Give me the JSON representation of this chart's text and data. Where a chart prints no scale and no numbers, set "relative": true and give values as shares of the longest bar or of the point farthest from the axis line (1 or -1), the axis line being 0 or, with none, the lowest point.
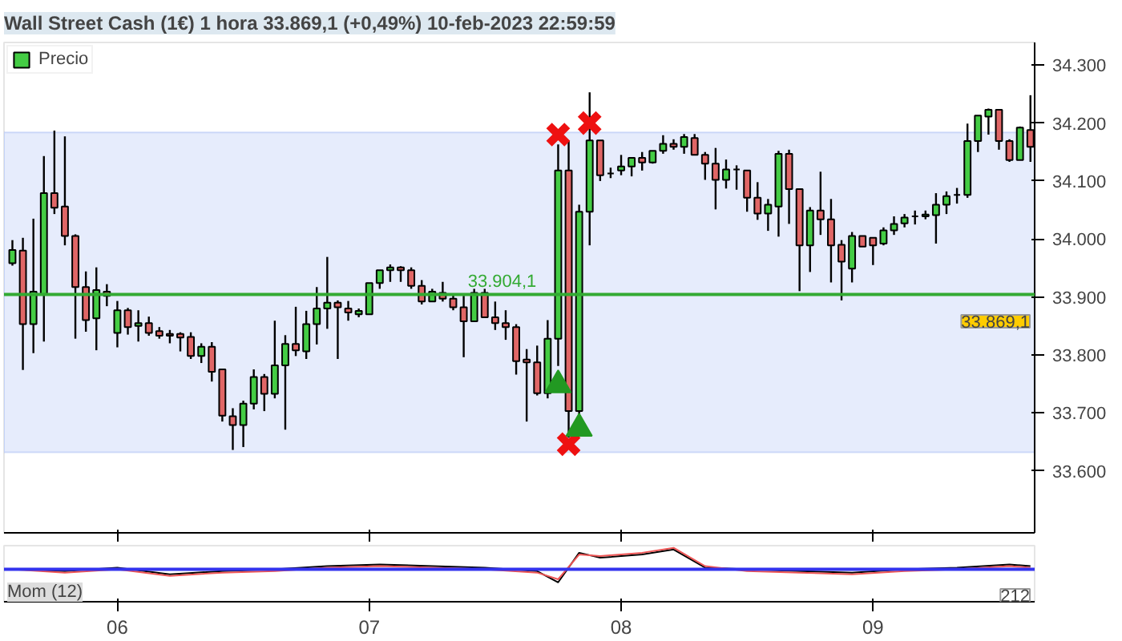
{
  "chart_data": [
    {
      "type": "candlestick",
      "title": "Wall Street Cash (1€) 1 hora 33.869,1 (+0,49%) 10-feb-2023 22:59:59",
      "legend": "top left",
      "tick_labels": "y",
      "x": [
        "2023-02-05T14:00",
        "2023-02-05T15:00",
        "2023-02-05T16:00",
        "2023-02-05T17:00",
        "2023-02-05T18:00",
        "2023-02-05T19:00",
        "2023-02-05T20:00",
        "2023-02-05T21:00",
        "2023-02-05T22:00",
        "2023-02-05T23:00",
        "2023-02-06T00:00",
        "2023-02-06T01:00",
        "2023-02-06T02:00",
        "2023-02-06T03:00",
        "2023-02-06T04:00",
        "2023-02-06T05:00",
        "2023-02-06T06:00",
        "2023-02-06T07:00",
        "2023-02-06T08:00",
        "2023-02-06T09:00",
        "2023-02-06T10:00",
        "2023-02-06T11:00",
        "2023-02-06T12:00",
        "2023-02-06T13:00",
        "2023-02-06T14:00",
        "2023-02-06T15:00",
        "2023-02-06T16:00",
        "2023-02-06T17:00",
        "2023-02-06T18:00",
        "2023-02-06T19:00",
        "2023-02-06T20:00",
        "2023-02-06T21:00",
        "2023-02-06T22:00",
        "2023-02-06T23:00",
        "2023-02-07T00:00",
        "2023-02-07T01:00",
        "2023-02-07T02:00",
        "2023-02-07T03:00",
        "2023-02-07T04:00",
        "2023-02-07T05:00",
        "2023-02-07T06:00",
        "2023-02-07T07:00",
        "2023-02-07T08:00",
        "2023-02-07T09:00",
        "2023-02-07T10:00",
        "2023-02-07T11:00",
        "2023-02-07T12:00",
        "2023-02-07T13:00",
        "2023-02-07T14:00",
        "2023-02-07T15:00",
        "2023-02-07T16:00",
        "2023-02-07T17:00",
        "2023-02-07T18:00",
        "2023-02-07T19:00",
        "2023-02-07T20:00",
        "2023-02-07T21:00",
        "2023-02-07T22:00",
        "2023-02-07T23:00",
        "2023-02-08T00:00",
        "2023-02-08T01:00",
        "2023-02-08T02:00",
        "2023-02-08T03:00",
        "2023-02-08T04:00",
        "2023-02-08T05:00",
        "2023-02-08T06:00",
        "2023-02-08T07:00",
        "2023-02-08T08:00",
        "2023-02-08T09:00",
        "2023-02-08T10:00",
        "2023-02-08T11:00",
        "2023-02-08T12:00",
        "2023-02-08T13:00",
        "2023-02-08T14:00",
        "2023-02-08T15:00",
        "2023-02-08T16:00",
        "2023-02-08T17:00",
        "2023-02-08T18:00",
        "2023-02-08T19:00",
        "2023-02-08T20:00",
        "2023-02-08T21:00",
        "2023-02-08T22:00",
        "2023-02-08T23:00",
        "2023-02-09T00:00",
        "2023-02-09T01:00",
        "2023-02-09T02:00",
        "2023-02-09T03:00",
        "2023-02-09T04:00",
        "2023-02-09T05:00",
        "2023-02-09T06:00",
        "2023-02-09T07:00",
        "2023-02-09T08:00",
        "2023-02-09T09:00",
        "2023-02-09T10:00",
        "2023-02-09T11:00",
        "2023-02-09T12:00",
        "2023-02-09T13:00",
        "2023-02-09T14:00",
        "2023-02-09T15:00"
      ],
      "series": [
        {
          "name": "Precio",
          "colors": [
            "#44cc44",
            "#e06666",
            "#44cc44",
            "#44cc44",
            "#e06666",
            "#e06666",
            "#e06666",
            "#e06666",
            "#44cc44",
            "#e06666",
            "#44cc44",
            "#e06666",
            "#44cc44",
            "#e06666",
            "#e06666",
            "#e06666",
            "#e06666",
            "#e06666",
            "#44cc44",
            "#e06666",
            "#e06666",
            "#e06666",
            "#44cc44",
            "#44cc44",
            "#e06666",
            "#44cc44",
            "#44cc44",
            "#e06666",
            "#44cc44",
            "#44cc44",
            "#44cc44",
            "#e06666",
            "#e06666",
            "#44cc44",
            "#44cc44",
            "#44cc44",
            "#44cc44",
            "#e06666",
            "#e06666",
            "#e06666",
            "#44cc44",
            "#e06666",
            "#e06666",
            "#e06666",
            "#44cc44",
            "#e06666",
            "#e06666",
            "#e06666",
            "#e06666",
            "#e06666",
            "#e06666",
            "#44cc44",
            "#44cc44",
            "#e06666",
            "#44cc44",
            "#44cc44",
            "#e06666",
            "#000000",
            "#44cc44",
            "#44cc44",
            "#e06666",
            "#44cc44",
            "#44cc44",
            "#e06666",
            "#44cc44",
            "#e06666",
            "#e06666",
            "#e06666",
            "#44cc44",
            "#000000",
            "#e06666",
            "#e06666",
            "#44cc44",
            "#44cc44",
            "#e06666",
            "#e06666",
            "#44cc44",
            "#e06666",
            "#e06666",
            "#e06666",
            "#44cc44",
            "#e06666",
            "#e06666",
            "#44cc44",
            "#44cc44",
            "#44cc44",
            "#000000",
            "#44cc44",
            "#44cc44",
            "#44cc44",
            "#000000",
            "#44cc44",
            "#44cc44",
            "#44cc44",
            "#e06666",
            "#e06666",
            "#44cc44",
            "#e06666"
          ],
          "ohlc": [
            [
              33958,
              33998,
              33954,
              33981
            ],
            [
              33980,
              34002,
              33774,
              33853
            ],
            [
              33853,
              34035,
              33803,
              33909
            ],
            [
              33904,
              34143,
              33823,
              34079
            ],
            [
              34079,
              34187,
              34043,
              34054
            ],
            [
              34056,
              34177,
              33989,
              34005
            ],
            [
              34005,
              34008,
              33828,
              33917
            ],
            [
              33917,
              33944,
              33840,
              33860
            ],
            [
              33863,
              33951,
              33808,
              33912
            ],
            [
              33909,
              33922,
              33884,
              33902
            ],
            [
              33838,
              33893,
              33813,
              33877
            ],
            [
              33877,
              33881,
              33835,
              33848
            ],
            [
              33850,
              33877,
              33823,
              33855
            ],
            [
              33855,
              33866,
              33833,
              33838
            ],
            [
              33841,
              33848,
              33828,
              33833
            ],
            [
              33836,
              33843,
              33820,
              33833
            ],
            [
              33836,
              33839,
              33806,
              33830
            ],
            [
              33831,
              33839,
              33793,
              33798
            ],
            [
              33798,
              33820,
              33786,
              33814
            ],
            [
              33814,
              33822,
              33754,
              33771
            ],
            [
              33775,
              33775,
              33685,
              33695
            ],
            [
              33694,
              33708,
              33636,
              33679
            ],
            [
              33679,
              33721,
              33641,
              33716
            ],
            [
              33716,
              33775,
              33706,
              33762
            ],
            [
              33762,
              33767,
              33703,
              33733
            ],
            [
              33733,
              33859,
              33725,
              33782
            ],
            [
              33782,
              33834,
              33671,
              33819
            ],
            [
              33819,
              33883,
              33798,
              33808
            ],
            [
              33806,
              33876,
              33793,
              33853
            ],
            [
              33853,
              33917,
              33818,
              33880
            ],
            [
              33880,
              33969,
              33845,
              33890
            ],
            [
              33890,
              33894,
              33793,
              33882
            ],
            [
              33880,
              33893,
              33859,
              33873
            ],
            [
              33870,
              33880,
              33865,
              33876
            ],
            [
              33870,
              33924,
              33870,
              33924
            ],
            [
              33924,
              33946,
              33914,
              33946
            ],
            [
              33946,
              33956,
              33926,
              33951
            ],
            [
              33951,
              33953,
              33926,
              33946
            ],
            [
              33946,
              33951,
              33914,
              33919
            ],
            [
              33919,
              33929,
              33887,
              33892
            ],
            [
              33892,
              33914,
              33892,
              33909
            ],
            [
              33907,
              33926,
              33892,
              33897
            ],
            [
              33897,
              33904,
              33877,
              33882
            ],
            [
              33882,
              33902,
              33796,
              33858
            ],
            [
              33858,
              33914,
              33858,
              33907
            ],
            [
              33907,
              33914,
              33865,
              33865
            ],
            [
              33865,
              33892,
              33843,
              33855
            ],
            [
              33855,
              33877,
              33826,
              33848
            ],
            [
              33848,
              33853,
              33766,
              33789
            ],
            [
              33792,
              33810,
              33685,
              33787
            ],
            [
              33787,
              33816,
              33730,
              33734
            ],
            [
              33734,
              33860,
              33725,
              33828
            ],
            [
              33828,
              34163,
              33781,
              34118
            ],
            [
              34118,
              34170,
              33657,
              33703
            ],
            [
              33703,
              34059,
              33696,
              34047
            ],
            [
              34047,
              34253,
              33989,
              34170
            ],
            [
              34170,
              34170,
              34100,
              34110
            ],
            [
              34113,
              34123,
              34105,
              34113
            ],
            [
              34118,
              34145,
              34110,
              34125
            ],
            [
              34125,
              34140,
              34108,
              34140
            ],
            [
              34140,
              34150,
              34118,
              34132
            ],
            [
              34132,
              34152,
              34130,
              34152
            ],
            [
              34152,
              34179,
              34147,
              34164
            ],
            [
              34164,
              34172,
              34154,
              34159
            ],
            [
              34159,
              34181,
              34147,
              34176
            ],
            [
              34174,
              34181,
              34145,
              34145
            ],
            [
              34145,
              34150,
              34102,
              34130
            ],
            [
              34130,
              34157,
              34051,
              34102
            ],
            [
              34102,
              34137,
              34087,
              34120
            ],
            [
              34120,
              34127,
              34085,
              34120
            ],
            [
              34118,
              34118,
              34047,
              34071
            ],
            [
              34071,
              34098,
              34033,
              34044
            ],
            [
              34044,
              34069,
              34014,
              34059
            ],
            [
              34056,
              34152,
              34004,
              34147
            ],
            [
              34147,
              34154,
              34026,
              34086
            ],
            [
              34086,
              34086,
              33910,
              33989
            ],
            [
              33989,
              34055,
              33943,
              34049
            ],
            [
              34049,
              34116,
              34007,
              34034
            ],
            [
              34034,
              34069,
              33925,
              33989
            ],
            [
              33990,
              33998,
              33894,
              33961
            ],
            [
              33949,
              34012,
              33925,
              34005
            ],
            [
              34005,
              34005,
              33987,
              33987
            ],
            [
              34002,
              34002,
              33955,
              33989
            ],
            [
              33992,
              34020,
              33989,
              34015
            ],
            [
              34015,
              34039,
              34007,
              34026
            ],
            [
              34027,
              34043,
              34020,
              34037
            ],
            [
              34039,
              34049,
              34025,
              34039
            ],
            [
              34039,
              34049,
              34034,
              34042
            ],
            [
              34041,
              34079,
              33992,
              34059
            ],
            [
              34059,
              34082,
              34043,
              34074
            ],
            [
              34076,
              34088,
              34061,
              34076
            ],
            [
              34076,
              34199,
              34071,
              34169
            ],
            [
              34169,
              34213,
              34150,
              34213
            ],
            [
              34211,
              34225,
              34180,
              34223
            ],
            [
              34223,
              34223,
              34154,
              34169
            ],
            [
              34169,
              34172,
              34133,
              34136
            ],
            [
              34136,
              34194,
              34136,
              34192
            ],
            [
              34188,
              34248,
              34133,
              34159
            ]
          ]
        },
        {
          "type": "scatter",
          "marker": "cross",
          "color": "#ee1111",
          "x": [
            "2023-02-07T18:00",
            "2023-02-07T21:00",
            "2023-02-07T19:00"
          ],
          "values": [
            34180,
            34200,
            33646
          ]
        },
        {
          "type": "scatter",
          "marker": "triangle",
          "color": "#229922",
          "x": [
            "2023-02-07T18:00",
            "2023-02-07T20:00"
          ],
          "values": [
            33748,
            33673
          ]
        }
      ],
      "xlim": [
        "2023-02-05T13:12",
        "2023-02-09T15:24"
      ],
      "xticks": [
        {
          "value": "2023-02-06",
          "label": null
        },
        {
          "value": "2023-02-07",
          "label": null
        },
        {
          "value": "2023-02-08",
          "label": null
        },
        {
          "value": "2023-02-09",
          "label": null
        }
      ],
      "ylim": [
        33493,
        34339
      ],
      "yticks": [
        {
          "value": 33600,
          "label": "33.600"
        },
        {
          "value": 33700,
          "label": "33.700"
        },
        {
          "value": 33800,
          "label": "33.800"
        },
        {
          "value": 33900,
          "label": "33.900"
        },
        {
          "value": 34000,
          "label": "34.000"
        },
        {
          "value": 34100,
          "label": "34.100"
        },
        {
          "value": 34200,
          "label": "34.200"
        },
        {
          "value": 34300,
          "label": "34.300"
        }
      ],
      "bands": [
        {
          "axis": "y",
          "from": 33632,
          "to": 34184,
          "color": "#e6ecfc"
        }
      ],
      "ref_lines": [
        {
          "axis": "y",
          "value": 33904.1,
          "label": "33.904,1",
          "color": "#33aa33"
        }
      ],
      "annotations": [
        "33.869,1"
      ]
    },
    {
      "type": "line",
      "title": "Mom (12)",
      "relative": true,
      "tick_labels": "x",
      "x": [
        "2023-02-05T14:00",
        "2023-02-05T19:00",
        "2023-02-06T00:00",
        "2023-02-06T05:00",
        "2023-02-06T10:00",
        "2023-02-06T15:00",
        "2023-02-06T20:00",
        "2023-02-07T01:00",
        "2023-02-07T06:00",
        "2023-02-07T11:00",
        "2023-02-07T16:00",
        "2023-02-07T18:00",
        "2023-02-07T20:00",
        "2023-02-07T22:00",
        "2023-02-08T02:00",
        "2023-02-08T05:00",
        "2023-02-08T08:00",
        "2023-02-08T12:00",
        "2023-02-08T17:00",
        "2023-02-08T22:00",
        "2023-02-09T03:00",
        "2023-02-09T08:00",
        "2023-02-09T13:00",
        "2023-02-09T15:00"
      ],
      "series": [
        {
          "color": "#000000",
          "values": [
            0,
            -0.08,
            0.08,
            -0.23,
            -0.08,
            0,
            0.15,
            0.23,
            0.15,
            0.08,
            -0.08,
            -0.6,
            0.77,
            0.54,
            0.69,
            0.92,
            0.08,
            0,
            -0.08,
            -0.15,
            0,
            0.08,
            0.23,
            0.15
          ]
        },
        {
          "color": "#ee5555",
          "values": [
            0,
            -0.15,
            0,
            -0.3,
            -0.15,
            -0.08,
            0.08,
            0.15,
            0.08,
            0,
            -0.15,
            -0.46,
            0.69,
            0.62,
            0.77,
            1,
            0.15,
            -0.08,
            -0.15,
            -0.23,
            -0.08,
            0,
            0.15,
            0.08
          ]
        }
      ],
      "xlim": [
        "2023-02-05T13:12",
        "2023-02-09T15:24"
      ],
      "xticks": [
        {
          "value": "2023-02-06",
          "label": "06"
        },
        {
          "value": "2023-02-07",
          "label": "07"
        },
        {
          "value": "2023-02-08",
          "label": "08"
        },
        {
          "value": "2023-02-09",
          "label": "09"
        }
      ],
      "ref_lines": [
        {
          "axis": "y",
          "value": 0,
          "color": "#3333ee"
        }
      ],
      "annotations": [
        "212"
      ]
    }
  ]
}
